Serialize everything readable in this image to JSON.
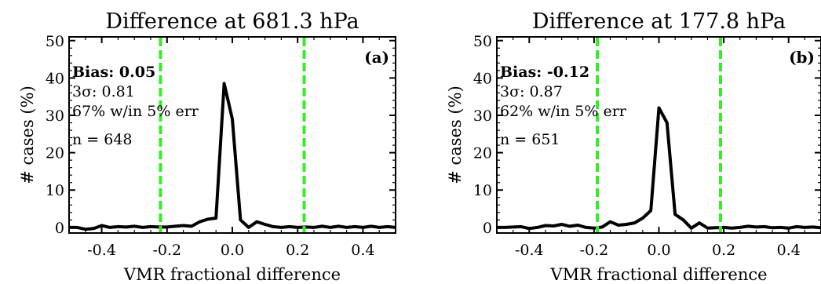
{
  "chart_data": [
    {
      "type": "line",
      "panel_label": "(a)",
      "title": "Difference at 681.3 hPa",
      "xlabel": "VMR fractional difference",
      "ylabel": "# cases (%)",
      "xlim": [
        -0.5,
        0.5
      ],
      "ylim": [
        -1.5,
        51
      ],
      "xticks": [
        -0.4,
        -0.2,
        0.0,
        0.2,
        0.4
      ],
      "xtick_labels": [
        "-0.4",
        "-0.2",
        "0.0",
        "0.2",
        "0.4"
      ],
      "yticks": [
        0,
        10,
        20,
        30,
        40,
        50
      ],
      "ytick_labels": [
        "0",
        "10",
        "20",
        "30",
        "40",
        "50"
      ],
      "annotations": [
        "Bias: 0.05",
        "3σ: 0.81",
        "67% w/in 5% err",
        "n = 648"
      ],
      "vlines": [
        -0.22,
        0.22
      ],
      "vline_color": "#33ee22",
      "line_color": "#000000",
      "series": [
        {
          "x": [
            -0.5,
            -0.475,
            -0.45,
            -0.425,
            -0.4,
            -0.375,
            -0.35,
            -0.325,
            -0.3,
            -0.275,
            -0.25,
            -0.225,
            -0.2,
            -0.175,
            -0.15,
            -0.125,
            -0.1,
            -0.075,
            -0.05,
            -0.025,
            0.0,
            0.025,
            0.05,
            0.075,
            0.1,
            0.125,
            0.15,
            0.175,
            0.2,
            0.225,
            0.25,
            0.275,
            0.3,
            0.325,
            0.35,
            0.375,
            0.4,
            0.425,
            0.45,
            0.475,
            0.5
          ],
          "values": [
            0,
            0,
            -0.5,
            -0.3,
            0.5,
            0,
            0.2,
            0.1,
            0.3,
            0,
            0.2,
            0.1,
            0.1,
            0.3,
            0.5,
            0.3,
            1.5,
            2.2,
            2.5,
            38.5,
            29,
            2,
            0,
            1.5,
            0.8,
            0.2,
            0,
            0.2,
            0,
            0.1,
            0,
            0.3,
            0,
            0.3,
            0,
            0.2,
            0,
            0.3,
            0,
            0.2,
            0
          ]
        }
      ]
    },
    {
      "type": "line",
      "panel_label": "(b)",
      "title": "Difference at 177.8 hPa",
      "xlabel": "VMR fractional difference",
      "ylabel": "# cases (%)",
      "xlim": [
        -0.5,
        0.5
      ],
      "ylim": [
        -1.5,
        51
      ],
      "xticks": [
        -0.4,
        -0.2,
        0.0,
        0.2,
        0.4
      ],
      "xtick_labels": [
        "-0.4",
        "-0.2",
        "0.0",
        "0.2",
        "0.4"
      ],
      "yticks": [
        0,
        10,
        20,
        30,
        40,
        50
      ],
      "ytick_labels": [
        "0",
        "10",
        "20",
        "30",
        "40",
        "50"
      ],
      "annotations": [
        "Bias: -0.12",
        "3σ: 0.87",
        "62% w/in 5% err",
        "n = 651"
      ],
      "vlines": [
        -0.19,
        0.19
      ],
      "vline_color": "#33ee22",
      "line_color": "#000000",
      "series": [
        {
          "x": [
            -0.5,
            -0.475,
            -0.45,
            -0.425,
            -0.4,
            -0.375,
            -0.35,
            -0.325,
            -0.3,
            -0.275,
            -0.25,
            -0.225,
            -0.2,
            -0.175,
            -0.15,
            -0.125,
            -0.1,
            -0.075,
            -0.05,
            -0.025,
            0.0,
            0.025,
            0.05,
            0.075,
            0.1,
            0.125,
            0.15,
            0.175,
            0.2,
            0.225,
            0.25,
            0.275,
            0.3,
            0.325,
            0.35,
            0.375,
            0.4,
            0.425,
            0.45,
            0.475,
            0.5
          ],
          "values": [
            0,
            0,
            0.1,
            0.2,
            -0.3,
            0,
            0.5,
            0.4,
            0.8,
            0.3,
            0.6,
            0,
            -0.2,
            0.1,
            1.5,
            0.6,
            0.8,
            1.2,
            2.5,
            4.5,
            32,
            28,
            3.5,
            2,
            -0.2,
            1.2,
            -0.2,
            -0.1,
            0,
            -0.2,
            0,
            0.3,
            0.1,
            0.2,
            -0.1,
            0,
            -0.2,
            0.2,
            0,
            0.1,
            -0.1
          ]
        }
      ]
    }
  ]
}
